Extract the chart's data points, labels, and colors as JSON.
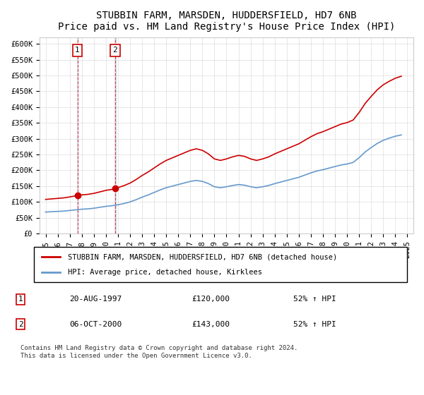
{
  "title": "STUBBIN FARM, MARSDEN, HUDDERSFIELD, HD7 6NB",
  "subtitle": "Price paid vs. HM Land Registry's House Price Index (HPI)",
  "ylabel_ticks": [
    "£0",
    "£50K",
    "£100K",
    "£150K",
    "£200K",
    "£250K",
    "£300K",
    "£350K",
    "£400K",
    "£450K",
    "£500K",
    "£550K",
    "£600K"
  ],
  "ytick_values": [
    0,
    50000,
    100000,
    150000,
    200000,
    250000,
    300000,
    350000,
    400000,
    450000,
    500000,
    550000,
    600000
  ],
  "ylim": [
    0,
    620000
  ],
  "xlim_start": 1994.5,
  "xlim_end": 2025.5,
  "xticks": [
    1995,
    1996,
    1997,
    1998,
    1999,
    2000,
    2001,
    2002,
    2003,
    2004,
    2005,
    2006,
    2007,
    2008,
    2009,
    2010,
    2011,
    2012,
    2013,
    2014,
    2015,
    2016,
    2017,
    2018,
    2019,
    2020,
    2021,
    2022,
    2023,
    2024,
    2025
  ],
  "sale1_x": 1997.64,
  "sale1_y": 120000,
  "sale1_label": "1",
  "sale2_x": 2000.77,
  "sale2_y": 143000,
  "sale2_label": "2",
  "sale_color": "#cc0000",
  "hpi_color": "#6699cc",
  "vline_color_sale1": "#cc0000",
  "vline_color_sale2": "#cc0000",
  "background_color": "#ffffff",
  "grid_color": "#dddddd",
  "legend_label_red": "STUBBIN FARM, MARSDEN, HUDDERSFIELD, HD7 6NB (detached house)",
  "legend_label_blue": "HPI: Average price, detached house, Kirklees",
  "annotation1_date": "20-AUG-1997",
  "annotation1_price": "£120,000",
  "annotation1_hpi": "52% ↑ HPI",
  "annotation2_date": "06-OCT-2000",
  "annotation2_price": "£143,000",
  "annotation2_hpi": "52% ↑ HPI",
  "footer": "Contains HM Land Registry data © Crown copyright and database right 2024.\nThis data is licensed under the Open Government Licence v3.0.",
  "title_fontsize": 10,
  "subtitle_fontsize": 9,
  "axis_fontsize": 7.5,
  "legend_fontsize": 7.5,
  "annotation_fontsize": 8
}
